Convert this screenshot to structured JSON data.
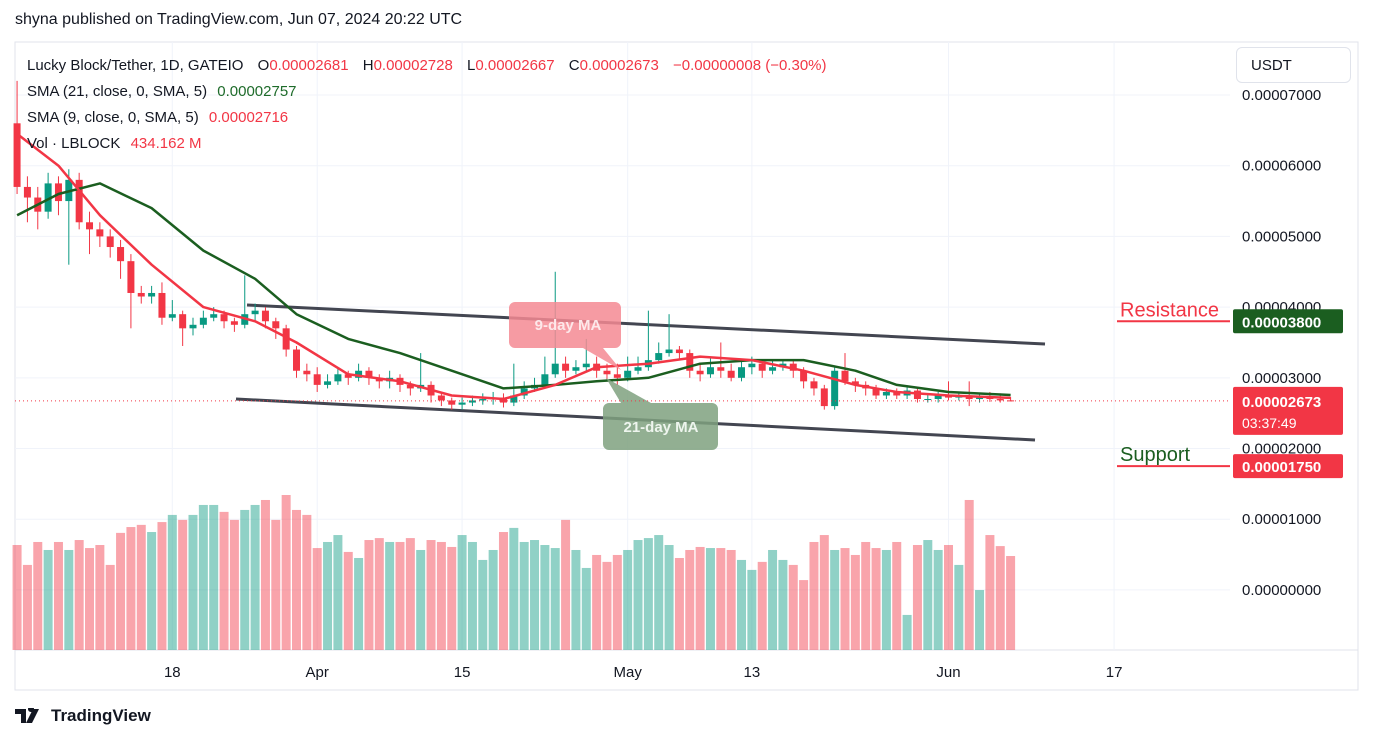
{
  "header": {
    "publisher": "shyna published on TradingView.com, Jun 07, 2024 20:22 UTC",
    "logo": "TradingView"
  },
  "chart_data": {
    "type": "candlestick",
    "symbol": "Lucky Block/Tether, 1D, GATEIO",
    "ohlc_legend": [
      {
        "key": "O",
        "text": "0.00002681"
      },
      {
        "key": "H",
        "text": "0.00002728"
      },
      {
        "key": "L",
        "text": "0.00002667"
      },
      {
        "key": "C",
        "text": "0.00002673"
      }
    ],
    "change": "−0.00000008 (−0.30%)",
    "currency": "USDT",
    "up_color": "#089981",
    "down_color": "#f23645",
    "open": [
      6.6e-05,
      5.7e-05,
      5.55e-05,
      5.35e-05,
      5.75e-05,
      5.5e-05,
      5.8e-05,
      5.2e-05,
      5.1e-05,
      5e-05,
      4.85e-05,
      4.65e-05,
      4.2e-05,
      4.15e-05,
      4.2e-05,
      3.85e-05,
      3.9e-05,
      3.7e-05,
      3.75e-05,
      3.85e-05,
      3.9e-05,
      3.8e-05,
      3.75e-05,
      3.9e-05,
      3.95e-05,
      3.8e-05,
      3.7e-05,
      3.4e-05,
      3.1e-05,
      3.05e-05,
      2.9e-05,
      2.95e-05,
      3.05e-05,
      3e-05,
      3.1e-05,
      3e-05,
      2.95e-05,
      3e-05,
      2.9e-05,
      2.85e-05,
      2.9e-05,
      2.75e-05,
      2.68e-05,
      2.62e-05,
      2.65e-05,
      2.68e-05,
      2.7e-05,
      2.72e-05,
      2.65e-05,
      2.75e-05,
      2.85e-05,
      2.9e-05,
      3.05e-05,
      3.2e-05,
      3.1e-05,
      3.15e-05,
      3.2e-05,
      3.1e-05,
      3.05e-05,
      3e-05,
      3.1e-05,
      3.15e-05,
      3.25e-05,
      3.35e-05,
      3.4e-05,
      3.35e-05,
      3.1e-05,
      3.05e-05,
      3.15e-05,
      3.1e-05,
      3e-05,
      3.15e-05,
      3.2e-05,
      3.1e-05,
      3.15e-05,
      3.2e-05,
      3.1e-05,
      2.95e-05,
      2.85e-05,
      2.6e-05,
      3.1e-05,
      2.95e-05,
      2.9e-05,
      2.85e-05,
      2.75e-05,
      2.8e-05,
      2.75e-05,
      2.82e-05,
      2.7e-05,
      2.7e-05,
      2.75e-05,
      2.72e-05,
      2.75e-05,
      2.7e-05,
      2.72e-05,
      2.7e-05,
      2.681e-05
    ],
    "high": [
      7.2e-05,
      5.85e-05,
      5.7e-05,
      5.9e-05,
      5.85e-05,
      5.95e-05,
      5.9e-05,
      5.35e-05,
      5.2e-05,
      5.1e-05,
      4.95e-05,
      4.75e-05,
      4.3e-05,
      4.3e-05,
      4.35e-05,
      4.1e-05,
      3.95e-05,
      3.85e-05,
      3.95e-05,
      4e-05,
      3.95e-05,
      3.85e-05,
      4.45e-05,
      4.05e-05,
      4e-05,
      3.85e-05,
      3.75e-05,
      3.45e-05,
      3.2e-05,
      3.15e-05,
      3.05e-05,
      3.15e-05,
      3.1e-05,
      3.2e-05,
      3.15e-05,
      3.05e-05,
      3.1e-05,
      3.05e-05,
      2.95e-05,
      3.35e-05,
      2.95e-05,
      2.8e-05,
      2.72e-05,
      2.72e-05,
      2.75e-05,
      2.78e-05,
      2.8e-05,
      2.78e-05,
      3.2e-05,
      2.95e-05,
      3e-05,
      3.3e-05,
      4.5e-05,
      3.3e-05,
      3.25e-05,
      3.55e-05,
      3.3e-05,
      3.2e-05,
      3.2e-05,
      3.3e-05,
      3.3e-05,
      3.95e-05,
      3.5e-05,
      3.9e-05,
      3.45e-05,
      3.4e-05,
      3.2e-05,
      3.3e-05,
      3.5e-05,
      3.2e-05,
      3.25e-05,
      3.3e-05,
      3.25e-05,
      3.25e-05,
      3.25e-05,
      3.25e-05,
      3.15e-05,
      3e-05,
      2.9e-05,
      3.15e-05,
      3.35e-05,
      3e-05,
      2.95e-05,
      2.9e-05,
      2.85e-05,
      2.85e-05,
      2.88e-05,
      2.85e-05,
      2.78e-05,
      2.8e-05,
      2.95e-05,
      2.8e-05,
      2.95e-05,
      2.78e-05,
      2.8e-05,
      2.78e-05,
      2.728e-05
    ],
    "low": [
      5.6e-05,
      5.2e-05,
      5.1e-05,
      5.25e-05,
      5.3e-05,
      4.6e-05,
      5.1e-05,
      4.75e-05,
      4.85e-05,
      4.7e-05,
      4.4e-05,
      3.7e-05,
      4.05e-05,
      4.05e-05,
      3.75e-05,
      3.8e-05,
      3.45e-05,
      3.6e-05,
      3.7e-05,
      3.8e-05,
      3.7e-05,
      3.65e-05,
      3.7e-05,
      3.8e-05,
      3.7e-05,
      3.55e-05,
      3.3e-05,
      3e-05,
      2.95e-05,
      2.8e-05,
      2.85e-05,
      2.9e-05,
      2.9e-05,
      2.95e-05,
      2.9e-05,
      2.85e-05,
      2.85e-05,
      2.8e-05,
      2.75e-05,
      2.8e-05,
      2.65e-05,
      2.6e-05,
      2.55e-05,
      2.55e-05,
      2.6e-05,
      2.62e-05,
      2.62e-05,
      2.58e-05,
      2.6e-05,
      2.7e-05,
      2.8e-05,
      2.85e-05,
      3e-05,
      3e-05,
      3.05e-05,
      3.1e-05,
      3e-05,
      2.95e-05,
      2.9e-05,
      2.95e-05,
      3.05e-05,
      3.1e-05,
      3.2e-05,
      3.3e-05,
      3.25e-05,
      3e-05,
      2.95e-05,
      3e-05,
      3e-05,
      2.95e-05,
      2.95e-05,
      3.05e-05,
      3e-05,
      3.05e-05,
      3.1e-05,
      3e-05,
      2.85e-05,
      2.75e-05,
      2.55e-05,
      2.55e-05,
      2.9e-05,
      2.8e-05,
      2.75e-05,
      2.7e-05,
      2.7e-05,
      2.7e-05,
      2.7e-05,
      2.65e-05,
      2.65e-05,
      2.65e-05,
      2.68e-05,
      2.68e-05,
      2.6e-05,
      2.65e-05,
      2.66e-05,
      2.65e-05,
      2.667e-05
    ],
    "close": [
      5.7e-05,
      5.55e-05,
      5.35e-05,
      5.75e-05,
      5.5e-05,
      5.8e-05,
      5.2e-05,
      5.1e-05,
      5e-05,
      4.85e-05,
      4.65e-05,
      4.2e-05,
      4.15e-05,
      4.2e-05,
      3.85e-05,
      3.9e-05,
      3.7e-05,
      3.75e-05,
      3.85e-05,
      3.9e-05,
      3.8e-05,
      3.75e-05,
      3.9e-05,
      3.95e-05,
      3.8e-05,
      3.7e-05,
      3.4e-05,
      3.1e-05,
      3.05e-05,
      2.9e-05,
      2.95e-05,
      3.05e-05,
      3e-05,
      3.1e-05,
      3e-05,
      2.95e-05,
      3e-05,
      2.9e-05,
      2.85e-05,
      2.9e-05,
      2.75e-05,
      2.68e-05,
      2.62e-05,
      2.65e-05,
      2.68e-05,
      2.7e-05,
      2.72e-05,
      2.65e-05,
      2.75e-05,
      2.85e-05,
      2.9e-05,
      3.05e-05,
      3.2e-05,
      3.1e-05,
      3.15e-05,
      3.2e-05,
      3.1e-05,
      3.05e-05,
      3e-05,
      3.1e-05,
      3.15e-05,
      3.25e-05,
      3.35e-05,
      3.4e-05,
      3.35e-05,
      3.1e-05,
      3.05e-05,
      3.15e-05,
      3.1e-05,
      3e-05,
      3.15e-05,
      3.2e-05,
      3.1e-05,
      3.15e-05,
      3.2e-05,
      3.1e-05,
      2.95e-05,
      2.85e-05,
      2.6e-05,
      3.1e-05,
      2.95e-05,
      2.9e-05,
      2.85e-05,
      2.75e-05,
      2.8e-05,
      2.75e-05,
      2.82e-05,
      2.7e-05,
      2.7e-05,
      2.75e-05,
      2.72e-05,
      2.75e-05,
      2.7e-05,
      2.72e-05,
      2.7e-05,
      2.681e-05,
      2.673e-05
    ],
    "volume": {
      "name": "Vol · LBLOCK",
      "value_label": "434.162 M",
      "values": [
        485,
        393,
        499,
        462,
        499,
        462,
        508,
        471,
        485,
        393,
        541,
        568,
        578,
        545,
        591,
        624,
        601,
        624,
        670,
        670,
        638,
        601,
        647,
        670,
        693,
        601,
        716,
        647,
        624,
        471,
        499,
        531,
        453,
        425,
        508,
        517,
        499,
        499,
        517,
        462,
        508,
        499,
        476,
        531,
        499,
        416,
        462,
        545,
        564,
        499,
        508,
        485,
        471,
        601,
        462,
        379,
        439,
        407,
        439,
        462,
        508,
        517,
        531,
        485,
        425,
        462,
        476,
        471,
        471,
        462,
        416,
        370,
        407,
        462,
        416,
        393,
        323,
        499,
        531,
        462,
        471,
        439,
        499,
        471,
        462,
        499,
        162,
        485,
        508,
        462,
        485,
        393,
        693,
        277,
        531,
        480,
        434.162
      ]
    },
    "series": [
      {
        "name": "SMA (21, close, 0, SMA, 5)",
        "legend_value": "0.00002757",
        "color": "#1b5e20",
        "x": [
          0,
          4,
          8,
          13,
          18,
          23,
          27,
          32,
          37,
          42,
          47,
          52,
          56,
          61,
          66,
          71,
          76,
          81,
          85,
          90,
          96
        ],
        "values": [
          5.3e-05,
          5.6e-05,
          5.75e-05,
          5.4e-05,
          4.8e-05,
          4.4e-05,
          3.9e-05,
          3.55e-05,
          3.35e-05,
          3.1e-05,
          2.85e-05,
          2.9e-05,
          2.95e-05,
          3e-05,
          3.2e-05,
          3.25e-05,
          3.25e-05,
          3.1e-05,
          2.9e-05,
          2.8e-05,
          2.757e-05
        ]
      },
      {
        "name": "SMA (9, close, 0, SMA, 5)",
        "legend_value": "0.00002716",
        "color": "#f23645",
        "x": [
          0,
          4,
          8,
          13,
          18,
          23,
          27,
          32,
          37,
          42,
          47,
          52,
          56,
          61,
          66,
          71,
          76,
          81,
          85,
          90,
          96
        ],
        "values": [
          6.45e-05,
          6e-05,
          5.3e-05,
          4.6e-05,
          4e-05,
          3.8e-05,
          3.5e-05,
          3.05e-05,
          2.95e-05,
          2.75e-05,
          2.7e-05,
          2.9e-05,
          3.15e-05,
          3.2e-05,
          3.3e-05,
          3.25e-05,
          3.1e-05,
          2.9e-05,
          2.8e-05,
          2.75e-05,
          2.716e-05
        ]
      }
    ],
    "ylim": [
      -8.5e-06,
      7.75e-05
    ],
    "yticks": [
      {
        "value": 7e-05,
        "label": "0.00007000"
      },
      {
        "value": 6e-05,
        "label": "0.00006000"
      },
      {
        "value": 5e-05,
        "label": "0.00005000"
      },
      {
        "value": 4e-05,
        "label": "0.00004000"
      },
      {
        "value": 3e-05,
        "label": "0.00003000"
      },
      {
        "value": 2e-05,
        "label": "0.00002000"
      },
      {
        "value": 1e-05,
        "label": "0.00001000"
      },
      {
        "value": 0,
        "label": "0.00000000"
      }
    ],
    "xlim": [
      -0.2,
      117.2
    ],
    "xticks": [
      {
        "value": 15,
        "label": "18"
      },
      {
        "value": 29,
        "label": "Apr"
      },
      {
        "value": 43,
        "label": "15"
      },
      {
        "value": 59,
        "label": "May"
      },
      {
        "value": 71,
        "label": "13"
      },
      {
        "value": 90,
        "label": "Jun"
      },
      {
        "value": 106,
        "label": "17"
      }
    ],
    "grid": true,
    "levels": [
      {
        "label": "Resistance",
        "value": 3.8e-05,
        "value_label": "0.00003800",
        "text_color": "#f23645",
        "line_color": "#f23645",
        "box_color": "#1b5e20"
      },
      {
        "label": "Support",
        "value": 1.75e-05,
        "value_label": "0.00001750",
        "text_color": "#1b5e20",
        "line_color": "#f23645",
        "box_color": "#f23645"
      }
    ],
    "last_price": {
      "value": 2.673e-05,
      "label": "0.00002673",
      "countdown": "03:37:49"
    },
    "annotations": [
      {
        "text": "9-day MA"
      },
      {
        "text": "21-day MA"
      }
    ]
  }
}
